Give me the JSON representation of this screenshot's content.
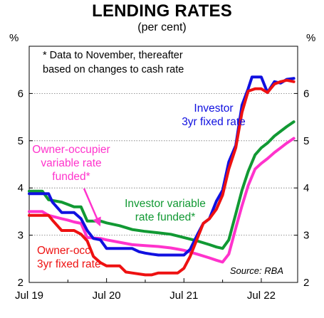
{
  "chart_data": {
    "type": "line",
    "title": "LENDING RATES",
    "subtitle": "(per cent)",
    "ylabel_left": "%",
    "ylabel_right": "%",
    "ylim": [
      2,
      7
    ],
    "y_ticks": [
      "2",
      "3",
      "4",
      "5",
      "6"
    ],
    "x_ticks": [
      "Jul 19",
      "Jul 20",
      "Jul 21",
      "Jul 22"
    ],
    "grid": "horizontal dotted",
    "note_line1": "*  Data to November, thereafter",
    "note_line2": "based on changes to cash rate",
    "source": "Source: RBA",
    "series": [
      {
        "name": "Investor 3yr fixed rate",
        "label_lines": [
          "Investor",
          "3yr fixed rate"
        ],
        "color": "#1010e0",
        "points": [
          [
            2019.5,
            3.88
          ],
          [
            2019.75,
            3.88
          ],
          [
            2019.8,
            3.7
          ],
          [
            2019.92,
            3.48
          ],
          [
            2020.08,
            3.48
          ],
          [
            2020.17,
            3.35
          ],
          [
            2020.25,
            3.1
          ],
          [
            2020.33,
            2.93
          ],
          [
            2020.42,
            2.9
          ],
          [
            2020.5,
            2.72
          ],
          [
            2020.67,
            2.72
          ],
          [
            2020.83,
            2.72
          ],
          [
            2020.92,
            2.65
          ],
          [
            2021.0,
            2.62
          ],
          [
            2021.08,
            2.6
          ],
          [
            2021.17,
            2.58
          ],
          [
            2021.33,
            2.58
          ],
          [
            2021.5,
            2.58
          ],
          [
            2021.58,
            2.7
          ],
          [
            2021.67,
            3.0
          ],
          [
            2021.75,
            3.25
          ],
          [
            2021.83,
            3.35
          ],
          [
            2021.92,
            3.72
          ],
          [
            2022.0,
            3.95
          ],
          [
            2022.08,
            4.55
          ],
          [
            2022.17,
            4.9
          ],
          [
            2022.25,
            5.75
          ],
          [
            2022.33,
            6.1
          ],
          [
            2022.38,
            6.35
          ],
          [
            2022.5,
            6.35
          ],
          [
            2022.58,
            6.02
          ],
          [
            2022.67,
            6.25
          ],
          [
            2022.75,
            6.22
          ],
          [
            2022.83,
            6.3
          ],
          [
            2022.92,
            6.32
          ]
        ]
      },
      {
        "name": "Owner-occ. 3yr fixed rate",
        "label_lines": [
          "Owner-occ.",
          "3yr fixed rate"
        ],
        "color": "#ee1111",
        "points": [
          [
            2019.5,
            3.42
          ],
          [
            2019.75,
            3.42
          ],
          [
            2019.8,
            3.32
          ],
          [
            2019.92,
            3.1
          ],
          [
            2020.08,
            3.1
          ],
          [
            2020.17,
            3.02
          ],
          [
            2020.25,
            2.88
          ],
          [
            2020.33,
            2.55
          ],
          [
            2020.42,
            2.42
          ],
          [
            2020.5,
            2.35
          ],
          [
            2020.67,
            2.35
          ],
          [
            2020.75,
            2.22
          ],
          [
            2020.83,
            2.2
          ],
          [
            2021.0,
            2.16
          ],
          [
            2021.08,
            2.16
          ],
          [
            2021.17,
            2.2
          ],
          [
            2021.33,
            2.2
          ],
          [
            2021.42,
            2.2
          ],
          [
            2021.5,
            2.3
          ],
          [
            2021.58,
            2.55
          ],
          [
            2021.67,
            2.92
          ],
          [
            2021.75,
            3.25
          ],
          [
            2021.83,
            3.35
          ],
          [
            2021.92,
            3.55
          ],
          [
            2022.0,
            3.85
          ],
          [
            2022.08,
            4.4
          ],
          [
            2022.17,
            4.85
          ],
          [
            2022.25,
            5.6
          ],
          [
            2022.33,
            6.05
          ],
          [
            2022.42,
            6.1
          ],
          [
            2022.5,
            6.1
          ],
          [
            2022.58,
            6.02
          ],
          [
            2022.67,
            6.2
          ],
          [
            2022.75,
            6.25
          ],
          [
            2022.83,
            6.28
          ],
          [
            2022.92,
            6.25
          ]
        ]
      },
      {
        "name": "Investor variable rate funded*",
        "label_lines": [
          "Investor variable",
          "rate funded*"
        ],
        "color": "#119933",
        "points": [
          [
            2019.5,
            3.93
          ],
          [
            2019.67,
            3.93
          ],
          [
            2019.75,
            3.75
          ],
          [
            2019.92,
            3.7
          ],
          [
            2020.0,
            3.65
          ],
          [
            2020.08,
            3.6
          ],
          [
            2020.17,
            3.6
          ],
          [
            2020.25,
            3.3
          ],
          [
            2020.42,
            3.3
          ],
          [
            2020.5,
            3.26
          ],
          [
            2020.67,
            3.2
          ],
          [
            2020.83,
            3.12
          ],
          [
            2021.0,
            3.08
          ],
          [
            2021.17,
            3.05
          ],
          [
            2021.33,
            3.02
          ],
          [
            2021.5,
            2.95
          ],
          [
            2021.67,
            2.88
          ],
          [
            2021.83,
            2.8
          ],
          [
            2021.92,
            2.75
          ],
          [
            2022.0,
            2.72
          ],
          [
            2022.08,
            2.9
          ],
          [
            2022.17,
            3.45
          ],
          [
            2022.25,
            3.95
          ],
          [
            2022.33,
            4.35
          ],
          [
            2022.42,
            4.7
          ],
          [
            2022.5,
            4.85
          ],
          [
            2022.58,
            4.95
          ],
          [
            2022.67,
            5.1
          ],
          [
            2022.75,
            5.2
          ],
          [
            2022.83,
            5.3
          ],
          [
            2022.92,
            5.4
          ]
        ]
      },
      {
        "name": "Owner-occupier variable rate funded*",
        "label_lines": [
          "Owner-occupier",
          "variable rate",
          "funded*"
        ],
        "color": "#ff33cc",
        "points": [
          [
            2019.5,
            3.5
          ],
          [
            2019.67,
            3.5
          ],
          [
            2019.75,
            3.42
          ],
          [
            2019.92,
            3.35
          ],
          [
            2020.0,
            3.32
          ],
          [
            2020.08,
            3.28
          ],
          [
            2020.17,
            3.25
          ],
          [
            2020.25,
            2.95
          ],
          [
            2020.42,
            2.93
          ],
          [
            2020.5,
            2.9
          ],
          [
            2020.67,
            2.85
          ],
          [
            2020.83,
            2.8
          ],
          [
            2021.0,
            2.78
          ],
          [
            2021.17,
            2.76
          ],
          [
            2021.33,
            2.73
          ],
          [
            2021.5,
            2.68
          ],
          [
            2021.67,
            2.6
          ],
          [
            2021.83,
            2.52
          ],
          [
            2021.92,
            2.47
          ],
          [
            2022.0,
            2.43
          ],
          [
            2022.08,
            2.6
          ],
          [
            2022.17,
            3.15
          ],
          [
            2022.25,
            3.62
          ],
          [
            2022.33,
            4.05
          ],
          [
            2022.42,
            4.4
          ],
          [
            2022.5,
            4.52
          ],
          [
            2022.58,
            4.62
          ],
          [
            2022.67,
            4.75
          ],
          [
            2022.75,
            4.85
          ],
          [
            2022.83,
            4.95
          ],
          [
            2022.92,
            5.05
          ]
        ]
      }
    ]
  }
}
